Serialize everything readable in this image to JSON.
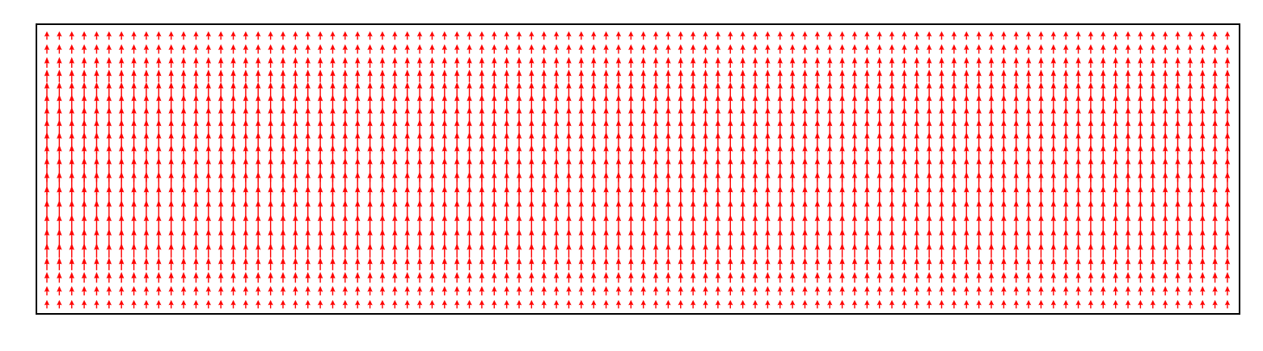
{
  "chart_data": {
    "type": "quiver",
    "title": "",
    "xlabel": "",
    "ylabel": "",
    "grid": false,
    "axes_ticks": false,
    "arrow_color": "#ff0000",
    "frame_color": "#000000",
    "background": "#ffffff",
    "field": {
      "direction": "up",
      "columns": 96,
      "rows": 21,
      "magnitude_profile": [
        0.32,
        0.36,
        0.42,
        0.5,
        0.58,
        0.66,
        0.74,
        0.82,
        0.9,
        0.96,
        1.0,
        0.96,
        0.9,
        0.82,
        0.74,
        0.66,
        0.58,
        0.5,
        0.42,
        0.36,
        0.32
      ]
    }
  }
}
